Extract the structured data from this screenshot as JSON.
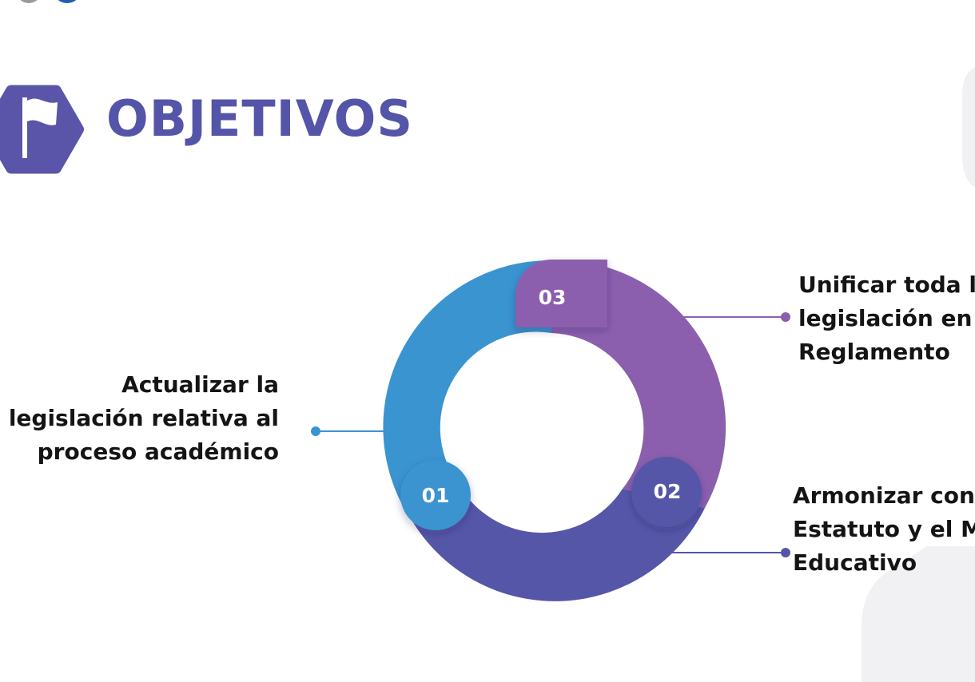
{
  "slide": {
    "title": "OBJETIVOS",
    "icon": "flag-icon",
    "colors": {
      "title": "#5454a8",
      "blue": "#3a94d0",
      "indigo": "#5656a8",
      "purple": "#8c5fae",
      "text": "#141414"
    }
  },
  "objectives": [
    {
      "number": "01",
      "lines": [
        "Actualizar la",
        "legislación relativa al",
        "proceso académico"
      ]
    },
    {
      "number": "02",
      "lines": [
        "Armonizar con",
        "Estatuto y el Mo",
        "Educativo"
      ]
    },
    {
      "number": "03",
      "lines": [
        "Unificar toda la",
        "legislación en u",
        "Reglamento"
      ]
    }
  ]
}
